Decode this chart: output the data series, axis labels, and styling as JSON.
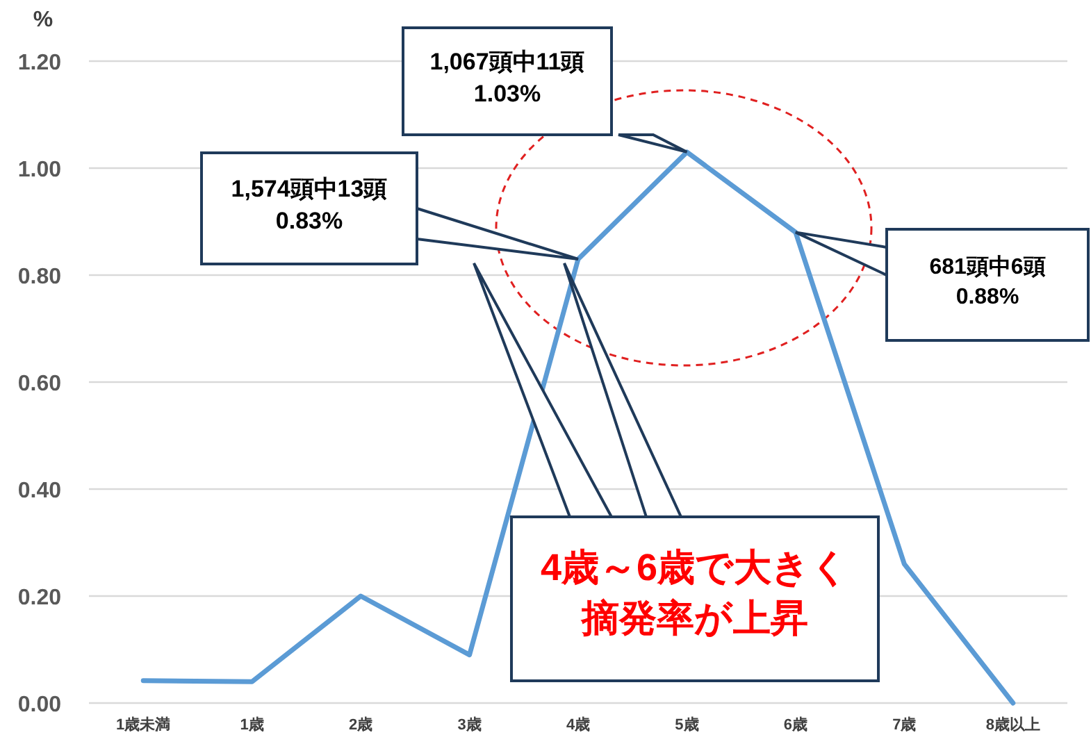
{
  "chart_data": {
    "type": "line",
    "ylabel": "%",
    "categories": [
      "1歳未満",
      "1歳",
      "2歳",
      "3歳",
      "4歳",
      "5歳",
      "6歳",
      "7歳",
      "8歳以上"
    ],
    "series": [
      {
        "color": "#5b9bd5",
        "values": [
          0.042,
          0.04,
          0.2,
          0.09,
          0.83,
          1.03,
          0.88,
          0.26,
          0.0
        ]
      }
    ],
    "ylim": [
      0,
      1.2
    ],
    "yticks": [
      {
        "value": 0,
        "label": "0.00"
      },
      {
        "value": 0.2,
        "label": "0.20"
      },
      {
        "value": 0.4,
        "label": "0.40"
      },
      {
        "value": 0.6,
        "label": "0.60"
      },
      {
        "value": 0.8,
        "label": "0.80"
      },
      {
        "value": 1.0,
        "label": "1.00"
      },
      {
        "value": 1.2,
        "label": "1.20"
      }
    ],
    "grid": "y",
    "marker": "none",
    "line_style": "solid",
    "annotations": [
      "1,574頭中13頭",
      "0.83%",
      "1,067頭中11頭",
      "1.03%",
      "681頭中6頭",
      "0.88%",
      "4歳～6歳で大きく",
      "摘発率が上昇"
    ]
  }
}
